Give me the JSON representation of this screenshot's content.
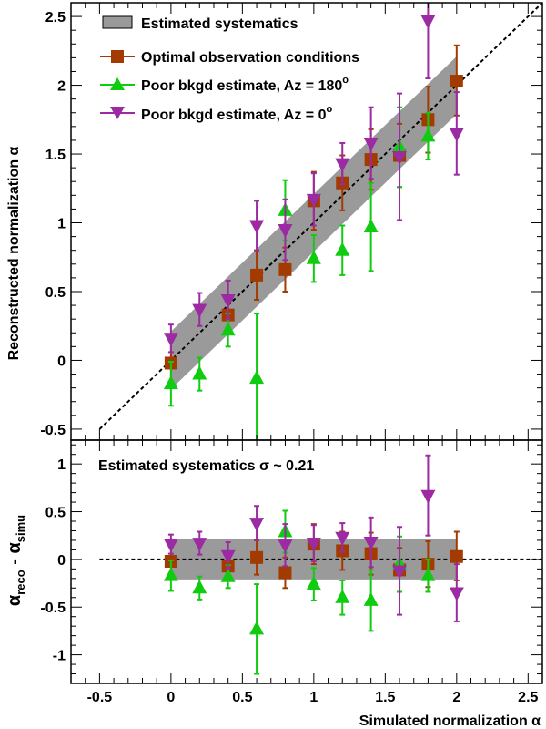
{
  "colors": {
    "band": "#9a9a9a",
    "optimal": "#a33a00",
    "poor180": "#10cc10",
    "poor0": "#9b2aa3",
    "diagonal": "#000000"
  },
  "chart_data": [
    {
      "type": "scatter",
      "panel": "top",
      "xlabel": "Simulated normalization α",
      "ylabel": "Reconstructed normalization α",
      "xlim": [
        -0.7,
        2.6
      ],
      "ylim": [
        -0.58,
        2.6
      ],
      "x_ticks": [
        "-0.5",
        "0",
        "0.5",
        "1",
        "1.5",
        "2",
        "2.5"
      ],
      "x_tick_values": [
        -0.5,
        0,
        0.5,
        1,
        1.5,
        2,
        2.5
      ],
      "y_ticks": [
        "-0.5",
        "0",
        "0.5",
        "1",
        "1.5",
        "2",
        "2.5"
      ],
      "y_tick_values": [
        -0.5,
        0,
        0.5,
        1,
        1.5,
        2,
        2.5
      ],
      "reference_line": {
        "label": "y = x",
        "from": [
          -0.5,
          -0.5
        ],
        "to": [
          2.6,
          2.6
        ]
      },
      "band": {
        "label": "Estimated systematics",
        "x_range": [
          0,
          2
        ],
        "half_width": 0.21
      },
      "legend_position": "top-left",
      "series": [
        {
          "name": "Optimal observation conditions",
          "marker": "square",
          "color_key": "optimal",
          "x": [
            0,
            0.4,
            0.6,
            0.8,
            1.0,
            1.2,
            1.4,
            1.6,
            1.8,
            2.0
          ],
          "y": [
            -0.02,
            0.33,
            0.62,
            0.66,
            1.16,
            1.29,
            1.46,
            1.49,
            1.75,
            2.03
          ],
          "err_lo": [
            0.16,
            0.13,
            0.18,
            0.16,
            0.21,
            0.2,
            0.22,
            0.23,
            0.24,
            0.25
          ],
          "err_hi": [
            0.16,
            0.13,
            0.18,
            0.16,
            0.21,
            0.2,
            0.22,
            0.23,
            0.24,
            0.26
          ]
        },
        {
          "name": "Poor bkgd estimate, Az = 180°",
          "marker": "triangle-up",
          "color_key": "poor180",
          "x": [
            0,
            0.2,
            0.4,
            0.6,
            0.8,
            1.0,
            1.2,
            1.4,
            1.6,
            1.8
          ],
          "y": [
            -0.17,
            -0.1,
            0.22,
            -0.13,
            1.09,
            0.74,
            0.8,
            0.97,
            1.55,
            1.63
          ],
          "err_lo": [
            0.16,
            0.12,
            0.12,
            0.47,
            0.22,
            0.17,
            0.18,
            0.32,
            0.29,
            0.17
          ],
          "err_hi": [
            0.16,
            0.12,
            0.12,
            0.47,
            0.22,
            0.17,
            0.18,
            0.32,
            0.29,
            0.17
          ]
        },
        {
          "name": "Poor bkgd estimate, Az = 0°",
          "marker": "triangle-down",
          "color_key": "poor0",
          "x": [
            0,
            0.2,
            0.4,
            0.6,
            0.8,
            1.0,
            1.2,
            1.4,
            1.6,
            1.8,
            2.0
          ],
          "y": [
            0.16,
            0.37,
            0.44,
            0.98,
            0.95,
            1.17,
            1.43,
            1.58,
            1.48,
            2.47,
            1.65
          ],
          "err_lo": [
            0.1,
            0.12,
            0.14,
            0.18,
            0.22,
            0.19,
            0.15,
            0.26,
            0.46,
            0.42,
            0.3
          ],
          "err_hi": [
            0.1,
            0.12,
            0.14,
            0.18,
            0.22,
            0.19,
            0.15,
            0.26,
            0.46,
            0.42,
            0.3
          ]
        }
      ]
    },
    {
      "type": "scatter",
      "panel": "bottom",
      "xlabel": "Simulated normalization α",
      "ylabel": "α_reco - α_simu",
      "xlim": [
        -0.7,
        2.6
      ],
      "ylim": [
        -1.3,
        1.25
      ],
      "x_ticks": [
        "-0.5",
        "0",
        "0.5",
        "1",
        "1.5",
        "2",
        "2.5"
      ],
      "x_tick_values": [
        -0.5,
        0,
        0.5,
        1,
        1.5,
        2,
        2.5
      ],
      "y_ticks": [
        "-1",
        "-0.5",
        "0",
        "0.5",
        "1"
      ],
      "y_tick_values": [
        -1,
        -0.5,
        0,
        0.5,
        1
      ],
      "annotation": "Estimated systematics σ ~ 0.21",
      "reference_line": {
        "label": "y = 0",
        "from": [
          -0.5,
          0
        ],
        "to": [
          2.6,
          0
        ]
      },
      "band": {
        "x_range": [
          0,
          2
        ],
        "half_width": 0.21
      },
      "series": [
        {
          "name": "Optimal observation conditions",
          "marker": "square",
          "color_key": "optimal",
          "x": [
            0,
            0.4,
            0.6,
            0.8,
            1.0,
            1.2,
            1.4,
            1.6,
            1.8,
            2.0
          ],
          "y": [
            -0.02,
            -0.07,
            0.02,
            -0.14,
            0.16,
            0.09,
            0.06,
            -0.11,
            -0.05,
            0.03
          ],
          "err_lo": [
            0.16,
            0.13,
            0.18,
            0.16,
            0.21,
            0.2,
            0.22,
            0.23,
            0.24,
            0.25
          ],
          "err_hi": [
            0.16,
            0.13,
            0.18,
            0.16,
            0.21,
            0.2,
            0.22,
            0.23,
            0.24,
            0.26
          ]
        },
        {
          "name": "Poor bkgd estimate, Az = 180°",
          "marker": "triangle-up",
          "color_key": "poor180",
          "x": [
            0,
            0.2,
            0.4,
            0.6,
            0.8,
            1.0,
            1.2,
            1.4,
            1.6,
            1.8
          ],
          "y": [
            -0.17,
            -0.3,
            -0.18,
            -0.73,
            0.29,
            -0.26,
            -0.4,
            -0.43,
            -0.05,
            -0.17
          ],
          "err_lo": [
            0.16,
            0.12,
            0.12,
            0.47,
            0.22,
            0.17,
            0.18,
            0.32,
            0.29,
            0.17
          ],
          "err_hi": [
            0.16,
            0.12,
            0.12,
            0.47,
            0.22,
            0.17,
            0.18,
            0.32,
            0.29,
            0.17
          ]
        },
        {
          "name": "Poor bkgd estimate, Az = 0°",
          "marker": "triangle-down",
          "color_key": "poor0",
          "x": [
            0,
            0.2,
            0.4,
            0.6,
            0.8,
            1.0,
            1.2,
            1.4,
            1.6,
            1.8,
            2.0
          ],
          "y": [
            0.16,
            0.17,
            0.04,
            0.38,
            0.15,
            0.17,
            0.23,
            0.18,
            -0.12,
            0.67,
            -0.35
          ],
          "err_lo": [
            0.1,
            0.12,
            0.14,
            0.18,
            0.22,
            0.19,
            0.15,
            0.26,
            0.46,
            0.42,
            0.3
          ],
          "err_hi": [
            0.1,
            0.12,
            0.14,
            0.18,
            0.22,
            0.19,
            0.15,
            0.26,
            0.46,
            0.42,
            0.3
          ]
        }
      ]
    }
  ],
  "legend": {
    "systematics": "Estimated systematics",
    "optimal": "Optimal observation conditions",
    "poor180": "Poor bkgd estimate, Az = 180",
    "poor0": "Poor bkgd estimate, Az = 0",
    "degree_mark": "o"
  },
  "labels": {
    "top_ylabel": "Reconstructed normalization α",
    "bottom_ylabel_main": "α",
    "bottom_ylabel_sub1": "reco",
    "bottom_ylabel_sep": " - α",
    "bottom_ylabel_sub2": "simu",
    "xlabel": "Simulated normalization α",
    "annotation": "Estimated systematics σ ~ 0.21"
  }
}
